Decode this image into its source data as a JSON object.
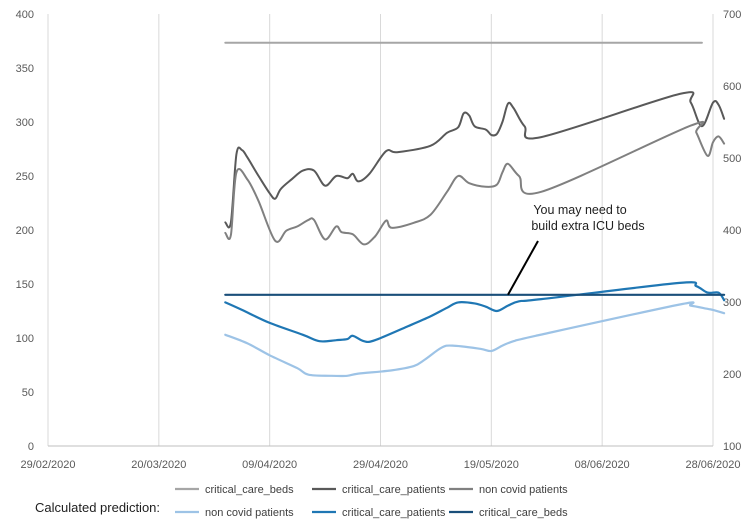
{
  "chart_data": {
    "type": "line",
    "x_axis": {
      "type": "date",
      "min": "2020-02-29",
      "max": "2020-06-28",
      "tick_labels": [
        "29/02/2020",
        "20/03/2020",
        "09/04/2020",
        "29/04/2020",
        "19/05/2020",
        "08/06/2020",
        "28/06/2020"
      ]
    },
    "y_left": {
      "min": 0,
      "max": 400,
      "ticks": [
        0,
        50,
        100,
        150,
        200,
        250,
        300,
        350,
        400
      ]
    },
    "y_right": {
      "min": 100,
      "max": 700,
      "ticks": [
        100,
        200,
        300,
        400,
        500,
        600,
        700
      ]
    },
    "grid": "vertical",
    "annotation": {
      "lines": [
        "You may need to",
        "build extra ICU beds"
      ],
      "pointer_to": {
        "x": "2020-05-22",
        "y": 140
      }
    },
    "prediction_label": "Calculated prediction:",
    "legend": {
      "placement": "bottom",
      "row1": [
        {
          "name": "critical_care_beds",
          "color": "#a6a6a6"
        },
        {
          "name": "critical_care_patients",
          "color": "#595959"
        },
        {
          "name": "non covid patients",
          "color": "#808080"
        }
      ],
      "row2": [
        {
          "name": "non covid patients",
          "color": "#9dc3e6"
        },
        {
          "name": "critical_care_patients",
          "color": "#1f77b4"
        },
        {
          "name": "critical_care_beds",
          "color": "#1a4f7a"
        }
      ]
    },
    "series": [
      {
        "name": "critical_care_beds",
        "group": "actual",
        "axis": "right",
        "color": "#a6a6a6",
        "points": [
          [
            "2020-04-01",
            660
          ],
          [
            "2020-06-26",
            660
          ]
        ]
      },
      {
        "name": "critical_care_patients",
        "group": "actual",
        "axis": "left",
        "color": "#595959",
        "points": [
          [
            "2020-04-01",
            207
          ],
          [
            "2020-04-02",
            207
          ],
          [
            "2020-04-03",
            270
          ],
          [
            "2020-04-04",
            274
          ],
          [
            "2020-04-05",
            267
          ],
          [
            "2020-04-07",
            250
          ],
          [
            "2020-04-09",
            234
          ],
          [
            "2020-04-10",
            229
          ],
          [
            "2020-04-11",
            238
          ],
          [
            "2020-04-13",
            247
          ],
          [
            "2020-04-15",
            255
          ],
          [
            "2020-04-17",
            255
          ],
          [
            "2020-04-19",
            241
          ],
          [
            "2020-04-21",
            250
          ],
          [
            "2020-04-23",
            248
          ],
          [
            "2020-04-24",
            252
          ],
          [
            "2020-04-25",
            245
          ],
          [
            "2020-04-27",
            252
          ],
          [
            "2020-04-30",
            273
          ],
          [
            "2020-05-02",
            272
          ],
          [
            "2020-05-08",
            278
          ],
          [
            "2020-05-11",
            290
          ],
          [
            "2020-05-13",
            295
          ],
          [
            "2020-05-14",
            308
          ],
          [
            "2020-05-15",
            306
          ],
          [
            "2020-05-16",
            296
          ],
          [
            "2020-05-18",
            293
          ],
          [
            "2020-05-19",
            288
          ],
          [
            "2020-05-20",
            289
          ],
          [
            "2020-05-21",
            300
          ],
          [
            "2020-05-22",
            317
          ],
          [
            "2020-05-23",
            313
          ],
          [
            "2020-05-25",
            296
          ],
          [
            "2020-05-28",
            286
          ],
          [
            "2020-06-22",
            326
          ],
          [
            "2020-06-24",
            318
          ],
          [
            "2020-06-26",
            296
          ],
          [
            "2020-06-28",
            318
          ],
          [
            "2020-06-29",
            316
          ],
          [
            "2020-06-30",
            303
          ]
        ]
      },
      {
        "name": "non covid patients",
        "group": "actual",
        "axis": "right",
        "color": "#808080",
        "points": [
          [
            "2020-04-01",
            396
          ],
          [
            "2020-04-02",
            393
          ],
          [
            "2020-04-03",
            480
          ],
          [
            "2020-04-05",
            470
          ],
          [
            "2020-04-07",
            440
          ],
          [
            "2020-04-10",
            385
          ],
          [
            "2020-04-12",
            399
          ],
          [
            "2020-04-14",
            405
          ],
          [
            "2020-04-16",
            414
          ],
          [
            "2020-04-17",
            414
          ],
          [
            "2020-04-19",
            387
          ],
          [
            "2020-04-21",
            405
          ],
          [
            "2020-04-22",
            397
          ],
          [
            "2020-04-24",
            394
          ],
          [
            "2020-04-26",
            380
          ],
          [
            "2020-04-28",
            391
          ],
          [
            "2020-04-30",
            413
          ],
          [
            "2020-05-01",
            403
          ],
          [
            "2020-05-05",
            410
          ],
          [
            "2020-05-08",
            421
          ],
          [
            "2020-05-11",
            453
          ],
          [
            "2020-05-13",
            475
          ],
          [
            "2020-05-15",
            465
          ],
          [
            "2020-05-18",
            460
          ],
          [
            "2020-05-20",
            463
          ],
          [
            "2020-05-21",
            480
          ],
          [
            "2020-05-22",
            492
          ],
          [
            "2020-05-24",
            475
          ],
          [
            "2020-05-28",
            453
          ],
          [
            "2020-06-24",
            545
          ],
          [
            "2020-06-25",
            535
          ],
          [
            "2020-06-27",
            503
          ],
          [
            "2020-06-28",
            522
          ],
          [
            "2020-06-29",
            530
          ],
          [
            "2020-06-30",
            520
          ]
        ]
      },
      {
        "name": "non covid patients",
        "group": "prediction",
        "axis": "left",
        "color": "#9dc3e6",
        "points": [
          [
            "2020-04-01",
            103
          ],
          [
            "2020-04-05",
            95
          ],
          [
            "2020-04-09",
            84
          ],
          [
            "2020-04-14",
            72
          ],
          [
            "2020-04-16",
            66
          ],
          [
            "2020-04-20",
            65
          ],
          [
            "2020-04-23",
            65
          ],
          [
            "2020-04-25",
            67
          ],
          [
            "2020-05-01",
            70
          ],
          [
            "2020-05-05",
            74
          ],
          [
            "2020-05-07",
            80
          ],
          [
            "2020-05-10",
            91
          ],
          [
            "2020-05-12",
            93
          ],
          [
            "2020-05-17",
            90
          ],
          [
            "2020-05-19",
            88
          ],
          [
            "2020-05-21",
            93
          ],
          [
            "2020-05-23",
            97
          ],
          [
            "2020-05-27",
            102
          ],
          [
            "2020-06-22",
            131
          ],
          [
            "2020-06-24",
            130
          ],
          [
            "2020-06-27",
            127
          ],
          [
            "2020-06-28",
            126
          ],
          [
            "2020-06-30",
            123
          ]
        ]
      },
      {
        "name": "critical_care_patients",
        "group": "prediction",
        "axis": "left",
        "color": "#1f77b4",
        "points": [
          [
            "2020-04-01",
            133
          ],
          [
            "2020-04-04",
            126
          ],
          [
            "2020-04-09",
            114
          ],
          [
            "2020-04-15",
            103
          ],
          [
            "2020-04-18",
            97
          ],
          [
            "2020-04-21",
            98
          ],
          [
            "2020-04-23",
            99
          ],
          [
            "2020-04-24",
            102
          ],
          [
            "2020-04-26",
            97
          ],
          [
            "2020-04-28",
            98
          ],
          [
            "2020-05-04",
            111
          ],
          [
            "2020-05-08",
            120
          ],
          [
            "2020-05-11",
            128
          ],
          [
            "2020-05-13",
            133
          ],
          [
            "2020-05-16",
            132
          ],
          [
            "2020-05-18",
            129
          ],
          [
            "2020-05-20",
            125
          ],
          [
            "2020-05-22",
            130
          ],
          [
            "2020-05-24",
            134
          ],
          [
            "2020-05-28",
            136
          ],
          [
            "2020-06-22",
            151
          ],
          [
            "2020-06-25",
            148
          ],
          [
            "2020-06-27",
            142
          ],
          [
            "2020-06-29",
            142
          ],
          [
            "2020-06-30",
            135
          ]
        ]
      },
      {
        "name": "critical_care_beds",
        "group": "prediction",
        "axis": "left",
        "color": "#1a4f7a",
        "points": [
          [
            "2020-04-01",
            140
          ],
          [
            "2020-06-30",
            140
          ]
        ]
      }
    ]
  }
}
